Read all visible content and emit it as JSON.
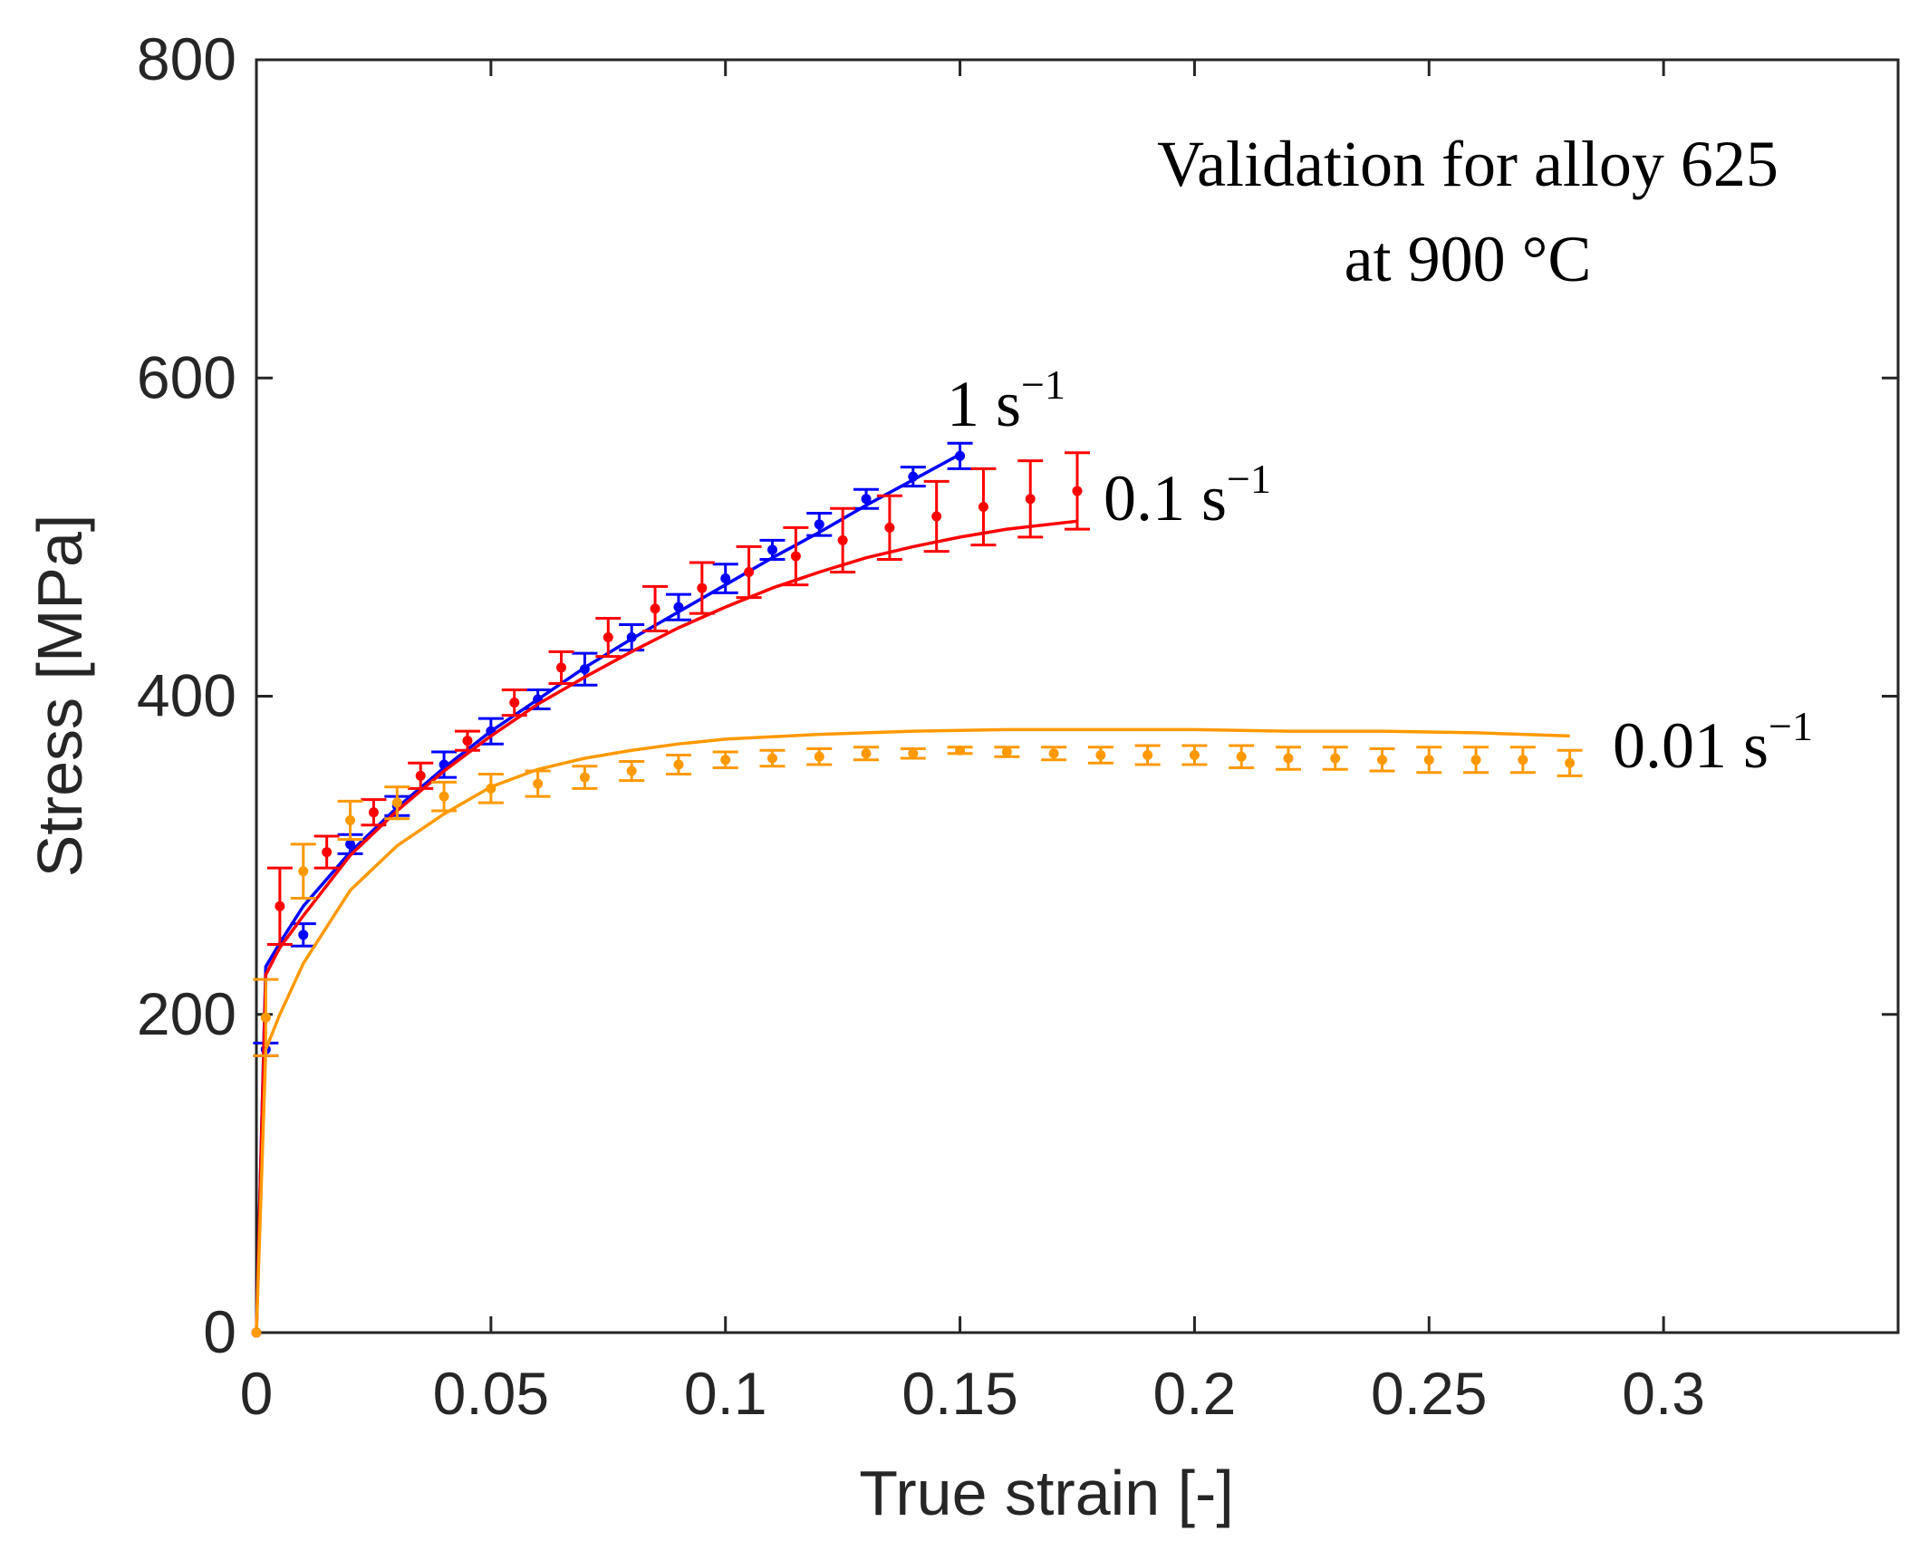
{
  "chart_data": {
    "type": "line",
    "title": "",
    "annotation": [
      "Validation for alloy 625",
      "at 900 °C"
    ],
    "xlabel": "True strain [-]",
    "ylabel": "Stress [MPa]",
    "xlim": [
      0,
      0.35
    ],
    "ylim": [
      0,
      800
    ],
    "xticks": [
      0,
      0.05,
      0.1,
      0.15,
      0.2,
      0.25,
      0.3
    ],
    "xtick_labels": [
      "0",
      "0.05",
      "0.1",
      "0.15",
      "0.2",
      "0.25",
      "0.3"
    ],
    "yticks": [
      0,
      200,
      400,
      600,
      800
    ],
    "ytick_labels": [
      "0",
      "200",
      "400",
      "600",
      "800"
    ],
    "grid": false,
    "series": [
      {
        "name": "1 s-1",
        "label_main": "1 s",
        "label_sup": "−1",
        "color": "#0000ff",
        "model_x": [
          0,
          0.002,
          0.005,
          0.01,
          0.02,
          0.03,
          0.04,
          0.05,
          0.06,
          0.07,
          0.08,
          0.09,
          0.1,
          0.11,
          0.12,
          0.13,
          0.14,
          0.15
        ],
        "model_y": [
          0,
          230,
          245,
          268,
          302,
          330,
          355,
          378,
          398,
          418,
          436,
          453,
          470,
          487,
          503,
          520,
          536,
          552
        ],
        "exp_x": [
          0,
          0.002,
          0.01,
          0.02,
          0.03,
          0.04,
          0.05,
          0.06,
          0.07,
          0.08,
          0.09,
          0.1,
          0.11,
          0.12,
          0.13,
          0.14,
          0.15
        ],
        "exp_y": [
          0,
          178,
          250,
          307,
          331,
          357,
          378,
          398,
          417,
          437,
          456,
          474,
          492,
          508,
          524,
          538,
          551
        ],
        "exp_err": [
          0,
          4,
          7,
          6,
          6,
          8,
          8,
          6,
          10,
          8,
          8,
          9,
          6,
          7,
          6,
          6,
          8
        ]
      },
      {
        "name": "0.1 s-1",
        "label_main": "0.1 s",
        "label_sup": "−1",
        "color": "#ff0000",
        "model_x": [
          0,
          0.002,
          0.005,
          0.01,
          0.02,
          0.03,
          0.04,
          0.05,
          0.06,
          0.07,
          0.08,
          0.09,
          0.1,
          0.11,
          0.12,
          0.13,
          0.14,
          0.15,
          0.16,
          0.175
        ],
        "model_y": [
          0,
          225,
          242,
          262,
          300,
          328,
          353,
          375,
          395,
          412,
          428,
          443,
          456,
          468,
          478,
          487,
          494,
          500,
          505,
          510
        ],
        "exp_x": [
          0,
          0.005,
          0.015,
          0.025,
          0.035,
          0.045,
          0.055,
          0.065,
          0.075,
          0.085,
          0.095,
          0.105,
          0.115,
          0.125,
          0.135,
          0.145,
          0.155,
          0.165,
          0.175
        ],
        "exp_y": [
          0,
          268,
          302,
          327,
          350,
          372,
          396,
          418,
          437,
          455,
          468,
          478,
          488,
          498,
          506,
          513,
          519,
          524,
          529
        ],
        "exp_err": [
          0,
          24,
          10,
          8,
          8,
          6,
          8,
          10,
          12,
          14,
          16,
          16,
          18,
          20,
          20,
          22,
          24,
          24,
          24
        ]
      },
      {
        "name": "0.01 s-1",
        "label_main": "0.01 s",
        "label_sup": "−1",
        "color": "#ff9900",
        "model_x": [
          0,
          0.002,
          0.005,
          0.01,
          0.02,
          0.03,
          0.04,
          0.05,
          0.06,
          0.07,
          0.08,
          0.09,
          0.1,
          0.12,
          0.14,
          0.16,
          0.18,
          0.2,
          0.22,
          0.24,
          0.26,
          0.28
        ],
        "model_y": [
          0,
          178,
          200,
          232,
          278,
          306,
          326,
          343,
          354,
          361,
          366,
          370,
          373,
          376,
          378,
          379,
          379,
          379,
          378,
          378,
          377,
          375
        ],
        "exp_x": [
          0,
          0.002,
          0.01,
          0.02,
          0.03,
          0.04,
          0.05,
          0.06,
          0.07,
          0.08,
          0.09,
          0.1,
          0.11,
          0.12,
          0.13,
          0.14,
          0.15,
          0.16,
          0.17,
          0.18,
          0.19,
          0.2,
          0.21,
          0.22,
          0.23,
          0.24,
          0.25,
          0.26,
          0.27,
          0.28
        ],
        "exp_y": [
          0,
          198,
          290,
          322,
          333,
          337,
          342,
          345,
          349,
          353,
          357,
          360,
          361,
          362,
          364,
          364,
          366,
          365,
          364,
          363,
          363,
          363,
          362,
          361,
          361,
          360,
          360,
          360,
          360,
          358
        ],
        "exp_err": [
          0,
          24,
          17,
          12,
          10,
          9,
          9,
          8,
          7,
          6,
          6,
          5,
          5,
          5,
          4,
          3,
          2,
          3,
          4,
          5,
          6,
          6,
          7,
          7,
          7,
          7,
          8,
          8,
          8,
          8
        ]
      }
    ]
  }
}
